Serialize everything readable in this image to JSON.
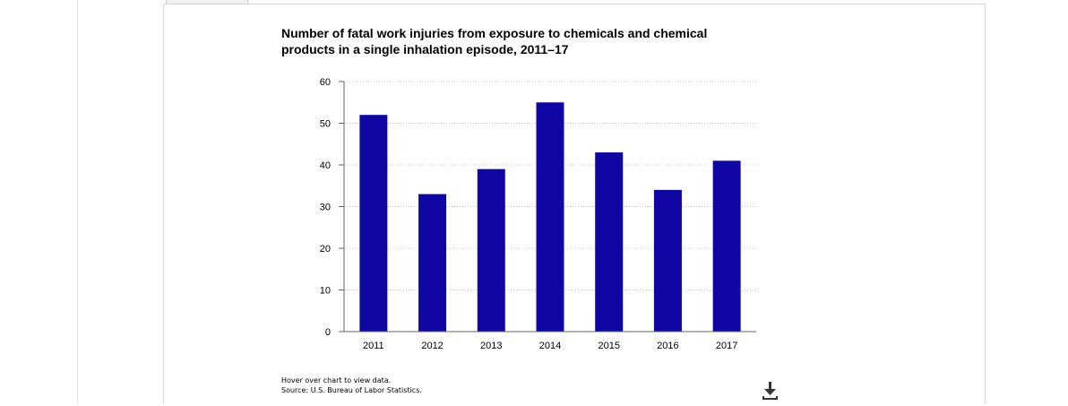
{
  "chart_data": {
    "type": "bar",
    "title": "Number of fatal work injuries from exposure to chemicals and chemical products in a single inhalation episode, 2011–17",
    "categories": [
      "2011",
      "2012",
      "2013",
      "2014",
      "2015",
      "2016",
      "2017"
    ],
    "values": [
      52,
      33,
      39,
      55,
      43,
      34,
      41
    ],
    "ylim": [
      0,
      60
    ],
    "yticks": [
      "0",
      "10",
      "20",
      "30",
      "40",
      "50",
      "60"
    ],
    "xlabel": "",
    "ylabel": "",
    "grid": "horizontal dotted",
    "legend": "none",
    "colors": {
      "bar": "#1006a3",
      "grid": "#c8c8c8",
      "axis": "#666666"
    }
  },
  "notes": {
    "hover": "Hover over chart to view data.",
    "source": "Source: U.S. Bureau of Labor Statistics."
  },
  "icons": {
    "download": "download-icon"
  }
}
